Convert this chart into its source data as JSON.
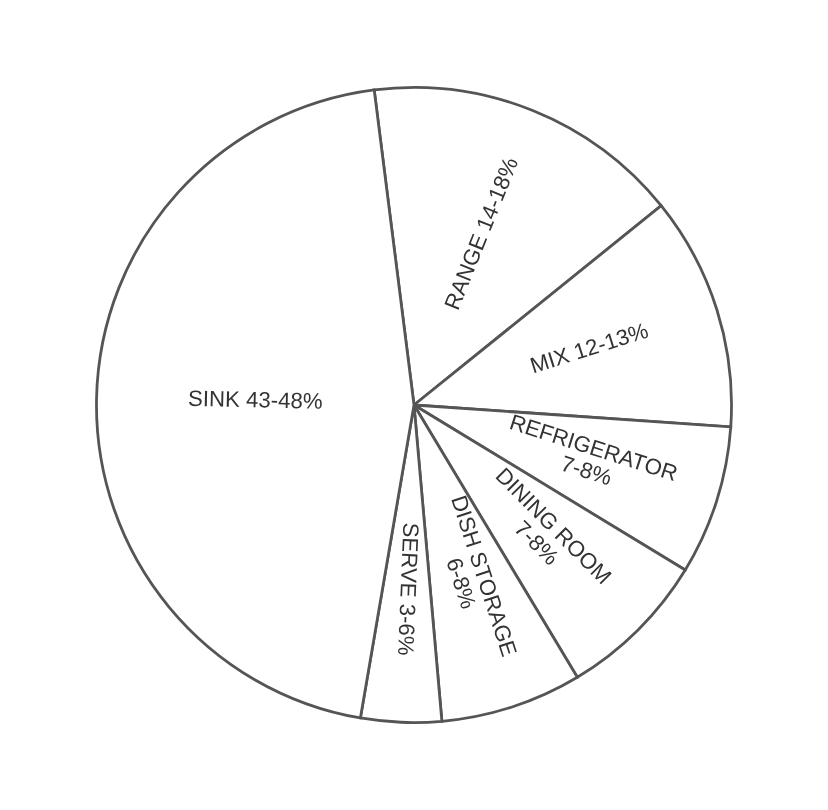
{
  "chart_data": {
    "type": "pie",
    "categories": [
      "RANGE 14-18%",
      "MIX 12-13%",
      "REFRIGERATOR 7-8%",
      "DINING ROOM 7-8%",
      "DISH STORAGE 6-8%",
      "SERVE 3-6%",
      "SINK 43-48%"
    ],
    "values": [
      16.2,
      11.9,
      7.6,
      7.7,
      7.2,
      4.1,
      45.3
    ],
    "colors": [
      "#ffffff",
      "#ffffff",
      "#ffffff",
      "#ffffff",
      "#ffffff",
      "#ffffff",
      "#ffffff"
    ]
  }
}
